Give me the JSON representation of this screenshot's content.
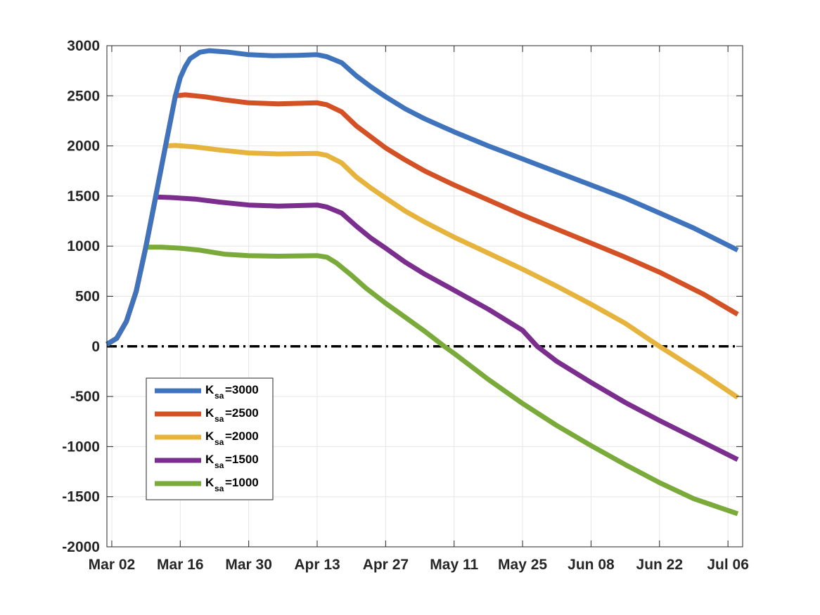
{
  "chart_data": {
    "type": "line",
    "title": "",
    "xlabel": "",
    "ylabel": "",
    "x_axis": {
      "type": "date",
      "range": [
        "2020-03-01",
        "2020-07-09"
      ],
      "ticks": [
        {
          "date": "2020-03-02",
          "label": "Mar 02"
        },
        {
          "date": "2020-03-16",
          "label": "Mar 16"
        },
        {
          "date": "2020-03-30",
          "label": "Mar 30"
        },
        {
          "date": "2020-04-13",
          "label": "Apr 13"
        },
        {
          "date": "2020-04-27",
          "label": "Apr 27"
        },
        {
          "date": "2020-05-11",
          "label": "May 11"
        },
        {
          "date": "2020-05-25",
          "label": "May 25"
        },
        {
          "date": "2020-06-08",
          "label": "Jun 08"
        },
        {
          "date": "2020-06-22",
          "label": "Jun 22"
        },
        {
          "date": "2020-07-06",
          "label": "Jul 06"
        }
      ]
    },
    "y_axis": {
      "range": [
        -2000,
        3000
      ],
      "ticks": [
        {
          "value": 3000,
          "label": "3000"
        },
        {
          "value": 2500,
          "label": "2500"
        },
        {
          "value": 2000,
          "label": "2000"
        },
        {
          "value": 1500,
          "label": "1500"
        },
        {
          "value": 1000,
          "label": "1000"
        },
        {
          "value": 500,
          "label": "500"
        },
        {
          "value": 0,
          "label": "0"
        },
        {
          "value": -500,
          "label": "-500"
        },
        {
          "value": -1000,
          "label": "-1000"
        },
        {
          "value": -1500,
          "label": "-1500"
        },
        {
          "value": -2000,
          "label": "-2000"
        }
      ]
    },
    "grid": true,
    "legend_position": "bottom-left",
    "series": [
      {
        "name_base": "K",
        "name_sub": "sa",
        "name_suffix": "=3000",
        "color": "#3f74bd",
        "points": [
          [
            "2020-03-01",
            20
          ],
          [
            "2020-03-03",
            80
          ],
          [
            "2020-03-05",
            250
          ],
          [
            "2020-03-07",
            550
          ],
          [
            "2020-03-09",
            1000
          ],
          [
            "2020-03-11",
            1500
          ],
          [
            "2020-03-13",
            2000
          ],
          [
            "2020-03-15",
            2500
          ],
          [
            "2020-03-16",
            2680
          ],
          [
            "2020-03-17",
            2790
          ],
          [
            "2020-03-18",
            2870
          ],
          [
            "2020-03-20",
            2935
          ],
          [
            "2020-03-22",
            2950
          ],
          [
            "2020-03-26",
            2935
          ],
          [
            "2020-03-30",
            2910
          ],
          [
            "2020-04-04",
            2900
          ],
          [
            "2020-04-09",
            2903
          ],
          [
            "2020-04-13",
            2910
          ],
          [
            "2020-04-15",
            2890
          ],
          [
            "2020-04-18",
            2830
          ],
          [
            "2020-04-21",
            2700
          ],
          [
            "2020-04-24",
            2590
          ],
          [
            "2020-04-27",
            2490
          ],
          [
            "2020-05-01",
            2370
          ],
          [
            "2020-05-05",
            2270
          ],
          [
            "2020-05-11",
            2140
          ],
          [
            "2020-05-18",
            2000
          ],
          [
            "2020-05-25",
            1870
          ],
          [
            "2020-06-01",
            1740
          ],
          [
            "2020-06-08",
            1610
          ],
          [
            "2020-06-15",
            1480
          ],
          [
            "2020-06-22",
            1330
          ],
          [
            "2020-06-29",
            1180
          ],
          [
            "2020-07-08",
            960
          ]
        ]
      },
      {
        "name_base": "K",
        "name_sub": "sa",
        "name_suffix": "=2500",
        "color": "#d35124",
        "points": [
          [
            "2020-03-01",
            20
          ],
          [
            "2020-03-03",
            80
          ],
          [
            "2020-03-05",
            250
          ],
          [
            "2020-03-07",
            550
          ],
          [
            "2020-03-09",
            1000
          ],
          [
            "2020-03-11",
            1500
          ],
          [
            "2020-03-13",
            2000
          ],
          [
            "2020-03-15",
            2500
          ],
          [
            "2020-03-17",
            2510
          ],
          [
            "2020-03-21",
            2490
          ],
          [
            "2020-03-25",
            2460
          ],
          [
            "2020-03-30",
            2430
          ],
          [
            "2020-04-05",
            2420
          ],
          [
            "2020-04-13",
            2430
          ],
          [
            "2020-04-15",
            2410
          ],
          [
            "2020-04-18",
            2340
          ],
          [
            "2020-04-21",
            2200
          ],
          [
            "2020-04-24",
            2090
          ],
          [
            "2020-04-27",
            1980
          ],
          [
            "2020-05-01",
            1860
          ],
          [
            "2020-05-05",
            1750
          ],
          [
            "2020-05-11",
            1610
          ],
          [
            "2020-05-18",
            1460
          ],
          [
            "2020-05-25",
            1310
          ],
          [
            "2020-06-01",
            1170
          ],
          [
            "2020-06-08",
            1030
          ],
          [
            "2020-06-15",
            890
          ],
          [
            "2020-06-22",
            740
          ],
          [
            "2020-07-01",
            520
          ],
          [
            "2020-07-08",
            320
          ]
        ]
      },
      {
        "name_base": "K",
        "name_sub": "sa",
        "name_suffix": "=2000",
        "color": "#e6b43c",
        "points": [
          [
            "2020-03-01",
            20
          ],
          [
            "2020-03-03",
            80
          ],
          [
            "2020-03-05",
            250
          ],
          [
            "2020-03-07",
            550
          ],
          [
            "2020-03-09",
            1000
          ],
          [
            "2020-03-11",
            1500
          ],
          [
            "2020-03-13",
            2000
          ],
          [
            "2020-03-15",
            2005
          ],
          [
            "2020-03-19",
            1990
          ],
          [
            "2020-03-24",
            1960
          ],
          [
            "2020-03-30",
            1930
          ],
          [
            "2020-04-05",
            1920
          ],
          [
            "2020-04-13",
            1925
          ],
          [
            "2020-04-15",
            1905
          ],
          [
            "2020-04-18",
            1830
          ],
          [
            "2020-04-21",
            1690
          ],
          [
            "2020-04-24",
            1580
          ],
          [
            "2020-04-27",
            1480
          ],
          [
            "2020-05-01",
            1350
          ],
          [
            "2020-05-05",
            1240
          ],
          [
            "2020-05-11",
            1090
          ],
          [
            "2020-05-18",
            930
          ],
          [
            "2020-05-25",
            770
          ],
          [
            "2020-06-01",
            600
          ],
          [
            "2020-06-08",
            420
          ],
          [
            "2020-06-15",
            230
          ],
          [
            "2020-06-22",
            0
          ],
          [
            "2020-07-01",
            -280
          ],
          [
            "2020-07-08",
            -510
          ]
        ]
      },
      {
        "name_base": "K",
        "name_sub": "sa",
        "name_suffix": "=1500",
        "color": "#7b2e8e",
        "points": [
          [
            "2020-03-01",
            20
          ],
          [
            "2020-03-03",
            80
          ],
          [
            "2020-03-05",
            250
          ],
          [
            "2020-03-07",
            550
          ],
          [
            "2020-03-09",
            1000
          ],
          [
            "2020-03-11",
            1490
          ],
          [
            "2020-03-14",
            1485
          ],
          [
            "2020-03-19",
            1470
          ],
          [
            "2020-03-24",
            1440
          ],
          [
            "2020-03-30",
            1410
          ],
          [
            "2020-04-05",
            1400
          ],
          [
            "2020-04-13",
            1410
          ],
          [
            "2020-04-15",
            1390
          ],
          [
            "2020-04-18",
            1330
          ],
          [
            "2020-04-21",
            1200
          ],
          [
            "2020-04-24",
            1080
          ],
          [
            "2020-04-27",
            980
          ],
          [
            "2020-05-01",
            840
          ],
          [
            "2020-05-05",
            720
          ],
          [
            "2020-05-11",
            560
          ],
          [
            "2020-05-18",
            370
          ],
          [
            "2020-05-25",
            160
          ],
          [
            "2020-05-28",
            0
          ],
          [
            "2020-06-01",
            -150
          ],
          [
            "2020-06-08",
            -360
          ],
          [
            "2020-06-15",
            -560
          ],
          [
            "2020-06-22",
            -740
          ],
          [
            "2020-06-29",
            -910
          ],
          [
            "2020-07-08",
            -1130
          ]
        ]
      },
      {
        "name_base": "K",
        "name_sub": "sa",
        "name_suffix": "=1000",
        "color": "#7aab3a",
        "points": [
          [
            "2020-03-01",
            20
          ],
          [
            "2020-03-03",
            80
          ],
          [
            "2020-03-05",
            250
          ],
          [
            "2020-03-07",
            550
          ],
          [
            "2020-03-09",
            990
          ],
          [
            "2020-03-12",
            990
          ],
          [
            "2020-03-16",
            980
          ],
          [
            "2020-03-20",
            960
          ],
          [
            "2020-03-25",
            920
          ],
          [
            "2020-03-30",
            905
          ],
          [
            "2020-04-05",
            900
          ],
          [
            "2020-04-13",
            905
          ],
          [
            "2020-04-15",
            890
          ],
          [
            "2020-04-17",
            830
          ],
          [
            "2020-04-20",
            710
          ],
          [
            "2020-04-23",
            580
          ],
          [
            "2020-04-27",
            430
          ],
          [
            "2020-05-01",
            290
          ],
          [
            "2020-05-05",
            150
          ],
          [
            "2020-05-09",
            0
          ],
          [
            "2020-05-11",
            -70
          ],
          [
            "2020-05-18",
            -330
          ],
          [
            "2020-05-25",
            -570
          ],
          [
            "2020-06-01",
            -790
          ],
          [
            "2020-06-08",
            -990
          ],
          [
            "2020-06-15",
            -1180
          ],
          [
            "2020-06-22",
            -1360
          ],
          [
            "2020-06-29",
            -1520
          ],
          [
            "2020-07-08",
            -1670
          ]
        ]
      }
    ]
  }
}
